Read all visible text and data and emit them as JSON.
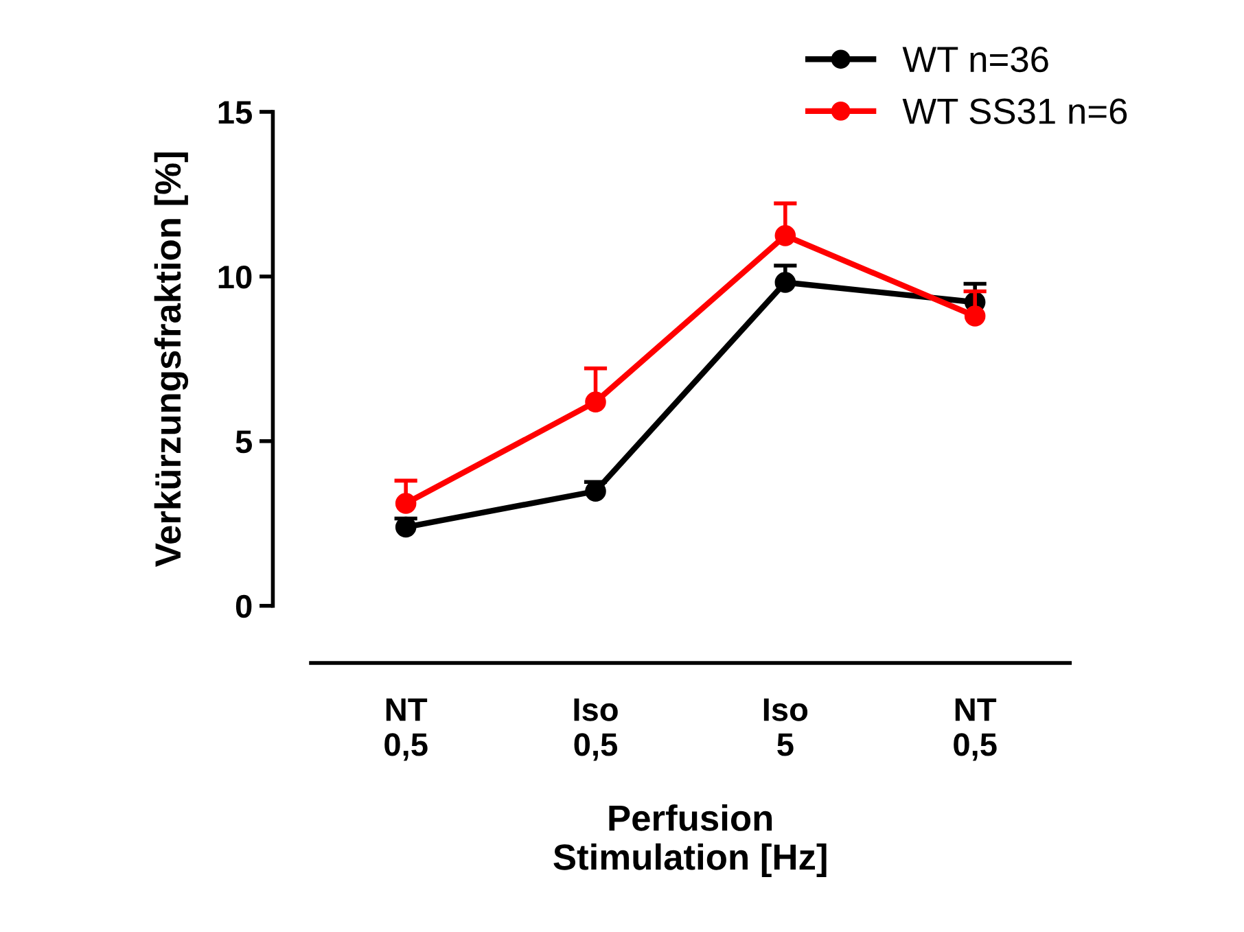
{
  "chart_data": {
    "type": "line",
    "xlabel": "Perfusion\nStimulation [Hz]",
    "ylabel": "Verkürzungsfraktion [%]",
    "categories": [
      "NT\n0,5",
      "Iso\n0,5",
      "Iso\n5",
      "NT\n0,5"
    ],
    "series": [
      {
        "name": "WT n=36",
        "color": "#000000",
        "values": [
          2.39,
          3.48,
          9.82,
          9.22
        ],
        "errors": [
          [
            2.39,
            2.65
          ],
          [
            3.48,
            3.76
          ],
          [
            9.82,
            10.33
          ],
          [
            9.22,
            9.78
          ]
        ]
      },
      {
        "name": "WT SS31 n=6",
        "color": "#ff0000",
        "values": [
          3.11,
          6.19,
          11.24,
          8.8
        ],
        "errors": [
          [
            3.11,
            3.8
          ],
          [
            6.19,
            7.21
          ],
          [
            11.24,
            12.22
          ],
          [
            8.8,
            9.55
          ]
        ]
      }
    ],
    "ylim": [
      0,
      15
    ],
    "yticks": [
      0,
      5,
      10,
      15
    ],
    "grid": false,
    "legend": "top right",
    "marker": "circle",
    "line_style": "solid"
  }
}
